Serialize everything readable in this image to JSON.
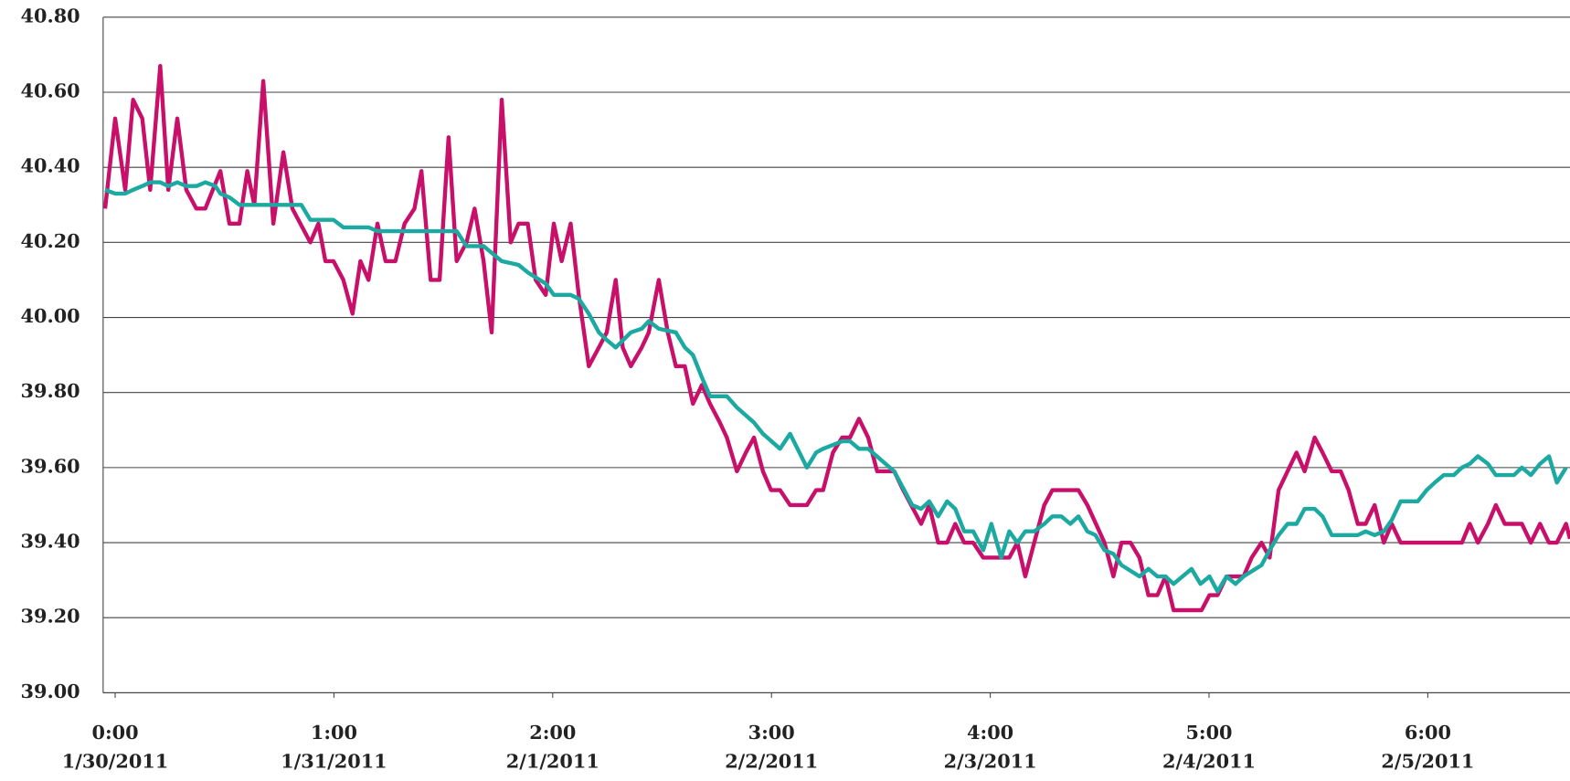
{
  "chart_data": {
    "type": "line",
    "xlim": [
      -0.055,
      6.65
    ],
    "ylim": [
      39,
      40.8
    ],
    "xticks": [
      {
        "value": 0,
        "label": "0:00"
      },
      {
        "value": 1,
        "label": "1:00"
      },
      {
        "value": 2,
        "label": "2:00"
      },
      {
        "value": 3,
        "label": "3:00"
      },
      {
        "value": 4,
        "label": "4:00"
      },
      {
        "value": 5,
        "label": "5:00"
      },
      {
        "value": 6,
        "label": "6:00"
      }
    ],
    "xtick_dates": [
      "1/30/2011",
      "1/31/2011",
      "2/1/2011",
      "2/2/2011",
      "2/3/2011",
      "2/4/2011",
      "2/5/2011"
    ],
    "yticks": [
      {
        "value": 39,
        "label": "39.00"
      },
      {
        "value": 39.2,
        "label": "39.20"
      },
      {
        "value": 39.4,
        "label": "39.40"
      },
      {
        "value": 39.6,
        "label": "39.60"
      },
      {
        "value": 39.8,
        "label": "39.80"
      },
      {
        "value": 40,
        "label": "40.00"
      },
      {
        "value": 40.2,
        "label": "40.20"
      },
      {
        "value": 40.4,
        "label": "40.40"
      },
      {
        "value": 40.6,
        "label": "40.60"
      },
      {
        "value": 40.8,
        "label": "40.80"
      }
    ],
    "grid": true,
    "series": [
      {
        "color": "#c8106a",
        "x": [
          -0.046,
          0,
          0.046,
          0.082,
          0.124,
          0.16,
          0.206,
          0.243,
          0.284,
          0.325,
          0.371,
          0.412,
          0.481,
          0.522,
          0.568,
          0.604,
          0.636,
          0.677,
          0.723,
          0.769,
          0.81,
          0.892,
          0.929,
          0.961,
          0.998,
          1.043,
          1.085,
          1.121,
          1.158,
          1.199,
          1.236,
          1.281,
          1.323,
          1.368,
          1.4,
          1.442,
          1.483,
          1.524,
          1.561,
          1.606,
          1.643,
          1.684,
          1.721,
          1.767,
          1.808,
          1.844,
          1.886,
          1.922,
          1.968,
          2.005,
          2.041,
          2.082,
          2.119,
          2.165,
          2.211,
          2.247,
          2.288,
          2.32,
          2.357,
          2.407,
          2.439,
          2.485,
          2.526,
          2.563,
          2.604,
          2.641,
          2.682,
          2.719,
          2.764,
          2.796,
          2.842,
          2.883,
          2.92,
          2.961,
          2.998,
          3.039,
          3.085,
          3.162,
          3.204,
          3.236,
          3.281,
          3.323,
          3.359,
          3.4,
          3.442,
          3.483,
          3.561,
          3.602,
          3.684,
          3.721,
          3.762,
          3.803,
          3.84,
          3.881,
          3.922,
          3.968,
          4.05,
          4.087,
          4.124,
          4.16,
          4.201,
          4.247,
          4.284,
          4.403,
          4.444,
          4.522,
          4.563,
          4.6,
          4.641,
          4.682,
          4.723,
          4.764,
          4.801,
          4.838,
          4.966,
          5.002,
          5.039,
          5.08,
          5.158,
          5.195,
          5.24,
          5.277,
          5.318,
          5.359,
          5.4,
          5.437,
          5.483,
          5.519,
          5.561,
          5.602,
          5.638,
          5.68,
          5.716,
          5.757,
          5.799,
          5.835,
          5.876,
          6.073,
          6.156,
          6.192,
          6.229,
          6.275,
          6.311,
          6.352,
          6.43,
          6.471,
          6.513,
          6.554,
          6.59,
          6.632,
          6.65
        ],
        "values": [
          40.29,
          40.53,
          40.34,
          40.58,
          40.53,
          40.34,
          40.67,
          40.34,
          40.53,
          40.34,
          40.29,
          40.29,
          40.39,
          40.25,
          40.25,
          40.39,
          40.3,
          40.63,
          40.25,
          40.44,
          40.29,
          40.2,
          40.25,
          40.15,
          40.15,
          40.1,
          40.01,
          40.15,
          40.1,
          40.25,
          40.15,
          40.15,
          40.25,
          40.29,
          40.39,
          40.1,
          40.1,
          40.48,
          40.15,
          40.2,
          40.29,
          40.15,
          39.96,
          40.58,
          40.2,
          40.25,
          40.25,
          40.1,
          40.06,
          40.25,
          40.15,
          40.25,
          40.06,
          39.87,
          39.92,
          39.96,
          40.1,
          39.92,
          39.87,
          39.92,
          39.96,
          40.1,
          39.96,
          39.87,
          39.87,
          39.77,
          39.82,
          39.77,
          39.72,
          39.68,
          39.59,
          39.64,
          39.68,
          39.59,
          39.54,
          39.54,
          39.5,
          39.5,
          39.54,
          39.54,
          39.64,
          39.68,
          39.68,
          39.73,
          39.68,
          39.59,
          39.59,
          39.54,
          39.45,
          39.5,
          39.4,
          39.4,
          39.45,
          39.4,
          39.4,
          39.36,
          39.36,
          39.36,
          39.4,
          39.31,
          39.4,
          39.5,
          39.54,
          39.54,
          39.5,
          39.4,
          39.31,
          39.4,
          39.4,
          39.36,
          39.26,
          39.26,
          39.31,
          39.22,
          39.22,
          39.26,
          39.26,
          39.31,
          39.31,
          39.36,
          39.4,
          39.36,
          39.54,
          39.59,
          39.64,
          39.59,
          39.68,
          39.64,
          39.59,
          39.59,
          39.54,
          39.45,
          39.45,
          39.5,
          39.4,
          39.45,
          39.4,
          39.4,
          39.4,
          39.45,
          39.4,
          39.45,
          39.5,
          39.45,
          39.45,
          39.4,
          39.45,
          39.4,
          39.4,
          39.45,
          39.41
        ]
      },
      {
        "color": "#1ba9a1",
        "x": [
          -0.046,
          0,
          0.046,
          0.082,
          0.124,
          0.16,
          0.206,
          0.243,
          0.284,
          0.325,
          0.371,
          0.412,
          0.458,
          0.481,
          0.522,
          0.568,
          0.769,
          0.851,
          0.892,
          0.998,
          1.043,
          1.158,
          1.199,
          1.561,
          1.606,
          1.684,
          1.767,
          1.844,
          1.886,
          1.968,
          2.005,
          2.082,
          2.119,
          2.165,
          2.211,
          2.247,
          2.288,
          2.357,
          2.407,
          2.439,
          2.485,
          2.563,
          2.604,
          2.641,
          2.682,
          2.719,
          2.796,
          2.842,
          2.92,
          2.961,
          3.039,
          3.085,
          3.162,
          3.204,
          3.236,
          3.323,
          3.359,
          3.4,
          3.442,
          3.561,
          3.643,
          3.684,
          3.721,
          3.762,
          3.803,
          3.84,
          3.881,
          3.922,
          3.968,
          4.005,
          4.05,
          4.087,
          4.124,
          4.16,
          4.201,
          4.247,
          4.284,
          4.325,
          4.366,
          4.403,
          4.444,
          4.481,
          4.522,
          4.563,
          4.6,
          4.682,
          4.723,
          4.764,
          4.801,
          4.838,
          4.92,
          4.961,
          5.002,
          5.039,
          5.08,
          5.121,
          5.158,
          5.24,
          5.277,
          5.318,
          5.359,
          5.4,
          5.437,
          5.483,
          5.519,
          5.561,
          5.68,
          5.716,
          5.757,
          5.799,
          5.835,
          5.876,
          5.954,
          5.995,
          6.032,
          6.073,
          6.119,
          6.156,
          6.192,
          6.229,
          6.275,
          6.311,
          6.394,
          6.43,
          6.471,
          6.513,
          6.554,
          6.59,
          6.632
        ],
        "values": [
          40.34,
          40.33,
          40.33,
          40.34,
          40.35,
          40.36,
          40.36,
          40.35,
          40.36,
          40.35,
          40.35,
          40.36,
          40.35,
          40.33,
          40.32,
          40.3,
          40.3,
          40.3,
          40.26,
          40.26,
          40.24,
          40.24,
          40.23,
          40.23,
          40.19,
          40.19,
          40.15,
          40.14,
          40.12,
          40.09,
          40.06,
          40.06,
          40.05,
          40.01,
          39.96,
          39.94,
          39.92,
          39.96,
          39.97,
          39.99,
          39.97,
          39.96,
          39.92,
          39.9,
          39.84,
          39.79,
          39.79,
          39.76,
          39.72,
          39.69,
          39.65,
          39.69,
          39.6,
          39.64,
          39.65,
          39.67,
          39.67,
          39.65,
          39.65,
          39.59,
          39.5,
          39.49,
          39.51,
          39.47,
          39.51,
          39.49,
          39.43,
          39.43,
          39.38,
          39.45,
          39.36,
          39.43,
          39.4,
          39.43,
          39.43,
          39.45,
          39.47,
          39.47,
          39.45,
          39.47,
          39.43,
          39.42,
          39.38,
          39.37,
          39.34,
          39.31,
          39.33,
          39.31,
          39.31,
          39.29,
          39.33,
          39.29,
          39.31,
          39.27,
          39.31,
          39.29,
          39.31,
          39.34,
          39.38,
          39.42,
          39.45,
          39.45,
          39.49,
          39.49,
          39.47,
          39.42,
          39.42,
          39.43,
          39.42,
          39.43,
          39.46,
          39.51,
          39.51,
          39.54,
          39.56,
          39.58,
          39.58,
          39.6,
          39.61,
          39.63,
          39.61,
          39.58,
          39.58,
          39.6,
          39.58,
          39.61,
          39.63,
          39.56,
          39.6
        ]
      }
    ]
  }
}
